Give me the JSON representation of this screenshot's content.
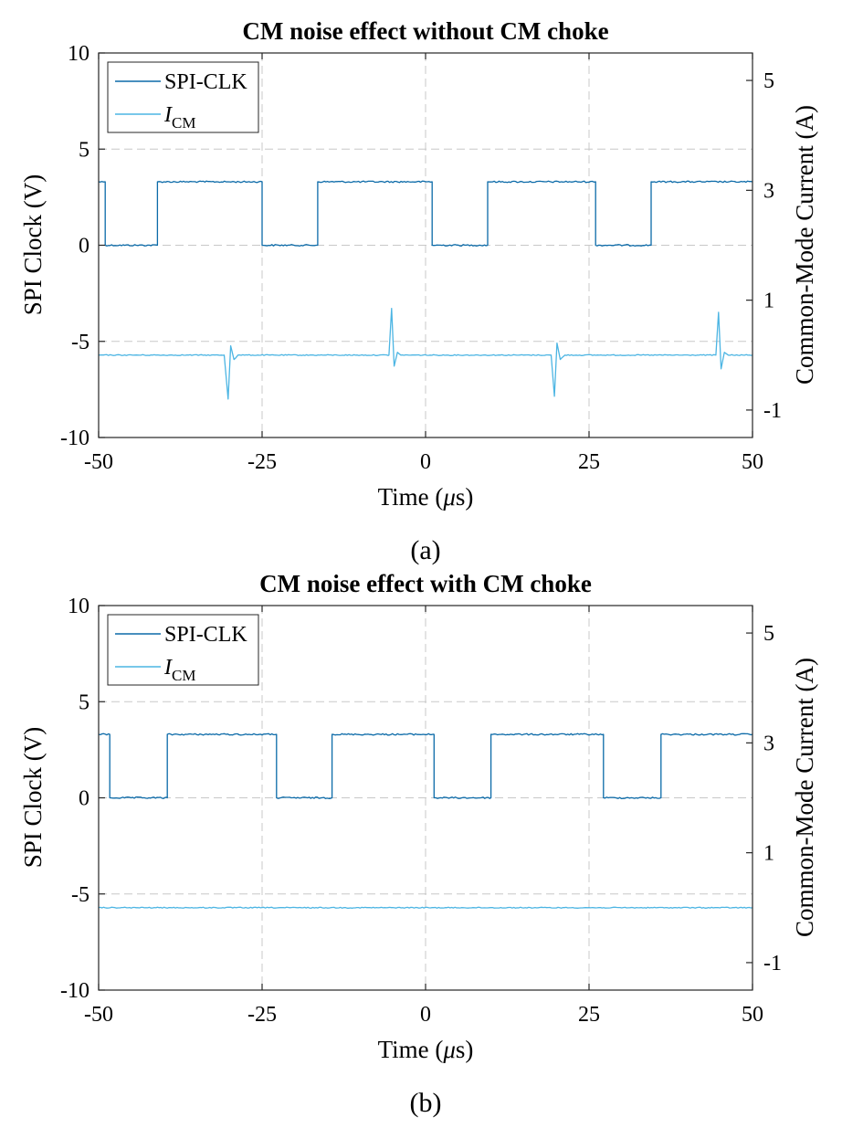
{
  "chart_data": [
    {
      "type": "line",
      "title": "CM noise effect without CM choke",
      "xlabel": "Time (μs)",
      "xlabel_parts": {
        "text": "Time (",
        "greek": "μ",
        "unit": "s)"
      },
      "ylabel": "SPI Clock (V)",
      "y2label": "Common-Mode Current (A)",
      "caption": "(a)",
      "xlim": [
        -50,
        50
      ],
      "ylim": [
        -10,
        10
      ],
      "y2lim": [
        -1.5,
        5.5
      ],
      "xticks": [
        "-50",
        "-25",
        "0",
        "25",
        "50"
      ],
      "yticks": [
        "10",
        "5",
        "0",
        "-5",
        "-10"
      ],
      "y2ticks": [
        "5",
        "3",
        "1",
        "-1"
      ],
      "grid": true,
      "legend_position": "top-left",
      "series": [
        {
          "name": "SPI-CLK",
          "axis": "left",
          "color": "#0b6aa8",
          "x": [
            -50,
            -49,
            -49,
            -41,
            -41,
            -25,
            -25,
            -16.5,
            -16.5,
            1,
            1,
            9.5,
            9.5,
            26,
            26,
            34.5,
            34.5,
            50
          ],
          "y": [
            3.3,
            3.3,
            0,
            0,
            3.3,
            3.3,
            0,
            0,
            3.3,
            3.3,
            0,
            0,
            3.3,
            3.3,
            0,
            0,
            3.3,
            3.3
          ]
        },
        {
          "name": "I",
          "name_sub": "CM",
          "axis": "right",
          "color": "#4cb5e3",
          "x": [
            -50,
            -30.8,
            -30.2,
            -29.8,
            -29.3,
            -28.7,
            -5.6,
            -5.2,
            -4.8,
            -4.3,
            -3.8,
            19.2,
            19.7,
            20.1,
            20.6,
            21.3,
            44.4,
            44.8,
            45.2,
            45.7,
            46.3,
            50
          ],
          "y": [
            0.0,
            0.0,
            -0.8,
            0.17,
            -0.08,
            0.0,
            0.0,
            0.85,
            -0.2,
            0.05,
            0.0,
            0.0,
            -0.75,
            0.22,
            -0.08,
            0.0,
            0.0,
            0.78,
            -0.25,
            0.05,
            0.0,
            0.0
          ]
        }
      ]
    },
    {
      "type": "line",
      "title": "CM noise effect with CM choke",
      "xlabel": "Time (μs)",
      "xlabel_parts": {
        "text": "Time (",
        "greek": "μ",
        "unit": "s)"
      },
      "ylabel": "SPI Clock (V)",
      "y2label": "Common-Mode Current (A)",
      "caption": "(b)",
      "xlim": [
        -50,
        50
      ],
      "ylim": [
        -10,
        10
      ],
      "y2lim": [
        -1.5,
        5.5
      ],
      "xticks": [
        "-50",
        "-25",
        "0",
        "25",
        "50"
      ],
      "yticks": [
        "10",
        "5",
        "0",
        "-5",
        "-10"
      ],
      "y2ticks": [
        "5",
        "3",
        "1",
        "-1"
      ],
      "grid": true,
      "legend_position": "top-left",
      "series": [
        {
          "name": "SPI-CLK",
          "axis": "left",
          "color": "#0b6aa8",
          "x": [
            -50,
            -48.3,
            -48.3,
            -39.5,
            -39.5,
            -22.8,
            -22.8,
            -14.3,
            -14.3,
            1.3,
            1.3,
            10,
            10,
            27.2,
            27.2,
            36,
            36,
            50
          ],
          "y": [
            3.3,
            3.3,
            0,
            0,
            3.3,
            3.3,
            0,
            0,
            3.3,
            3.3,
            0,
            0,
            3.3,
            3.3,
            0,
            0,
            3.3,
            3.3
          ]
        },
        {
          "name": "I",
          "name_sub": "CM",
          "axis": "right",
          "color": "#4cb5e3",
          "x": [
            -50,
            50
          ],
          "y": [
            0.0,
            0.0
          ]
        }
      ]
    }
  ]
}
